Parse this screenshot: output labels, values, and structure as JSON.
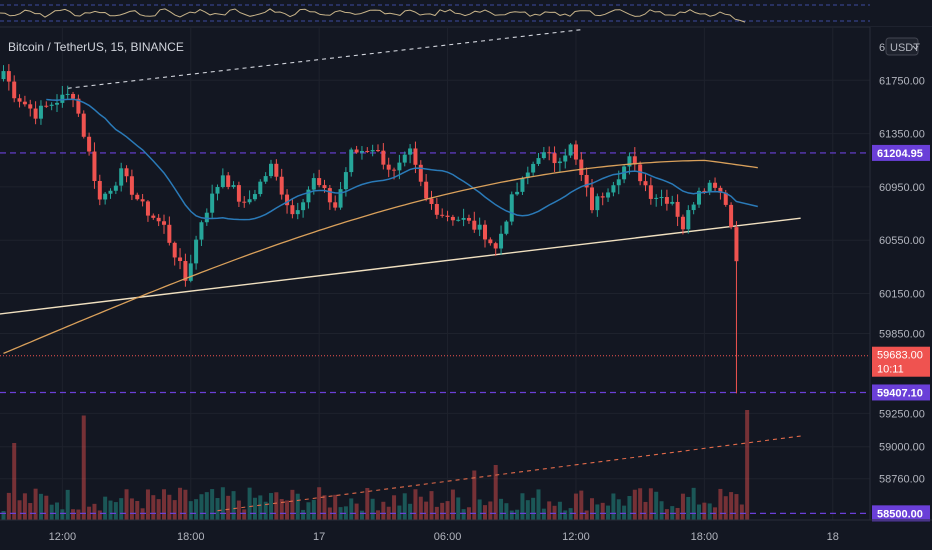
{
  "symbol_title": "Bitcoin / TetherUS, 15, BINANCE",
  "currency_button": "USDT",
  "currency_prefix": "6",
  "colors": {
    "background": "#131722",
    "up": "#26a69a",
    "down": "#ef5350",
    "ma_blue": "#2a7ab8",
    "ma_orange": "#d9a05b",
    "trend": "#f0e0c0",
    "level": "#6a3fd8",
    "price_line": "#ef5350"
  },
  "chart_data": {
    "type": "candlestick",
    "title": "Bitcoin / TetherUS, 15, BINANCE",
    "xlabel": "",
    "ylabel": "",
    "ylim": [
      58450,
      62150
    ],
    "y_ticks": [
      61750,
      61350,
      60950,
      60550,
      60150,
      59850,
      59250,
      59000,
      58760
    ],
    "y_tick_labels": [
      "61750.00",
      "61350.00",
      "60950.00",
      "60550.00",
      "60150.00",
      "59850.00",
      "59250.00",
      "59000.00",
      "58760.00"
    ],
    "x_ticks": [
      {
        "label": "12:00",
        "bar": 11
      },
      {
        "label": "18:00",
        "bar": 35
      },
      {
        "label": "17",
        "bar": 59
      },
      {
        "label": "06:00",
        "bar": 83
      },
      {
        "label": "12:00",
        "bar": 107
      },
      {
        "label": "18:00",
        "bar": 131
      },
      {
        "label": "18",
        "bar": 155
      }
    ],
    "bars_to_last": 137,
    "key_points": [
      [
        0,
        61820
      ],
      [
        2,
        61650
      ],
      [
        6,
        61500
      ],
      [
        10,
        61600
      ],
      [
        13,
        61650
      ],
      [
        16,
        61200
      ],
      [
        18,
        60850
      ],
      [
        22,
        61050
      ],
      [
        26,
        60800
      ],
      [
        30,
        60650
      ],
      [
        34,
        60250
      ],
      [
        37,
        60700
      ],
      [
        41,
        61050
      ],
      [
        45,
        60800
      ],
      [
        50,
        61100
      ],
      [
        54,
        60750
      ],
      [
        58,
        61000
      ],
      [
        62,
        60800
      ],
      [
        65,
        61200
      ],
      [
        69,
        61250
      ],
      [
        73,
        61050
      ],
      [
        76,
        61200
      ],
      [
        79,
        60850
      ],
      [
        82,
        60750
      ],
      [
        86,
        60700
      ],
      [
        90,
        60600
      ],
      [
        92,
        60480
      ],
      [
        95,
        60850
      ],
      [
        98,
        61050
      ],
      [
        100,
        61200
      ],
      [
        103,
        61150
      ],
      [
        106,
        61250
      ],
      [
        110,
        60800
      ],
      [
        113,
        60950
      ],
      [
        117,
        61150
      ],
      [
        121,
        60900
      ],
      [
        125,
        60850
      ],
      [
        127,
        60650
      ],
      [
        130,
        60950
      ],
      [
        133,
        60980
      ],
      [
        135,
        60850
      ],
      [
        136,
        60650
      ],
      [
        137,
        60400
      ],
      [
        138,
        59900
      ],
      [
        139,
        59683
      ]
    ],
    "last_candle_low": 59400,
    "levels": [
      61204.95,
      59407.1,
      58500.0
    ],
    "level_labels": [
      "61204.95",
      "59407.10",
      "58500.00"
    ],
    "current_price": 59683.0,
    "current_price_label": "59683.00",
    "countdown": "10:11",
    "trendlines": [
      {
        "style": "solid",
        "from": [
          -2,
          59990
        ],
        "to": [
          149,
          60715
        ]
      },
      {
        "style": "dashed",
        "from": [
          12,
          61690
        ],
        "to": [
          108,
          62130
        ]
      },
      {
        "style": "dashed",
        "from": [
          40,
          58520
        ],
        "to": [
          149,
          59080
        ]
      }
    ],
    "moving_averages": [
      {
        "color": "blue",
        "period": 20
      },
      {
        "color": "orange",
        "period": 100
      }
    ],
    "volume_spikes": [
      [
        15,
        0.95
      ],
      [
        2,
        0.7
      ],
      [
        139,
        1.0
      ],
      [
        88,
        0.45
      ],
      [
        92,
        0.5
      ]
    ]
  }
}
